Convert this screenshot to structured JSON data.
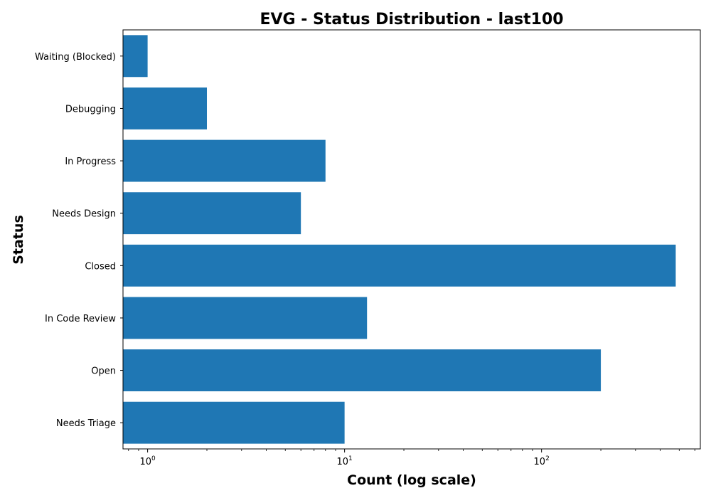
{
  "chart_data": {
    "type": "bar",
    "orientation": "horizontal",
    "title": "EVG - Status Distribution - last100",
    "xlabel": "Count (log scale)",
    "ylabel": "Status",
    "x_scale": "log",
    "xlim": [
      0.75,
      640
    ],
    "x_ticks": [
      {
        "base": "10",
        "exp": "0",
        "value": 1
      },
      {
        "base": "10",
        "exp": "1",
        "value": 10
      },
      {
        "base": "10",
        "exp": "2",
        "value": 100
      }
    ],
    "categories": [
      "Waiting (Blocked)",
      "Debugging",
      "In Progress",
      "Needs Design",
      "Closed",
      "In Code Review",
      "Open",
      "Needs Triage"
    ],
    "values": [
      1,
      2,
      8,
      6,
      480,
      13,
      200,
      10
    ],
    "grid": false,
    "bar_color": "#1f77b4"
  }
}
